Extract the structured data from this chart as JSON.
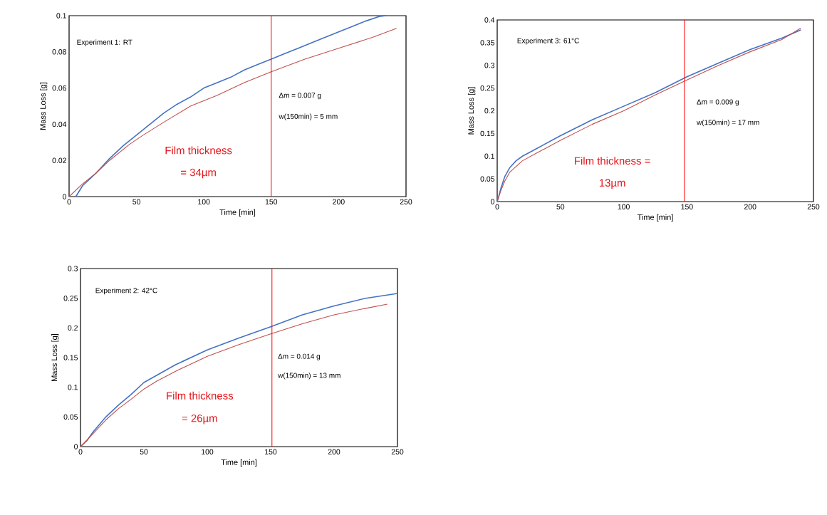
{
  "chart_data": [
    {
      "type": "line",
      "xlabel": "Time [min]",
      "ylabel": "Mass Loss [g]",
      "xlim": [
        0,
        250
      ],
      "ylim": [
        0,
        0.1
      ],
      "xticks": [
        0,
        50,
        100,
        150,
        200,
        250
      ],
      "yticks": [
        0,
        0.02,
        0.04,
        0.06,
        0.08,
        0.1
      ],
      "series": [
        {
          "color": "#4472c4",
          "x": [
            5,
            10,
            20,
            30,
            40,
            50,
            60,
            70,
            80,
            90,
            100,
            110,
            120,
            130,
            140,
            150,
            160,
            170,
            180,
            190,
            200,
            210,
            220,
            230,
            235
          ],
          "values": [
            0,
            0.006,
            0.013,
            0.021,
            0.028,
            0.034,
            0.04,
            0.046,
            0.051,
            0.055,
            0.06,
            0.063,
            0.066,
            0.07,
            0.073,
            0.076,
            0.079,
            0.082,
            0.085,
            0.088,
            0.091,
            0.094,
            0.097,
            0.0995,
            0.1
          ]
        },
        {
          "color": "#c0504d",
          "x": [
            0,
            10,
            20,
            30,
            45,
            55,
            70,
            90,
            110,
            130,
            150,
            175,
            200,
            225,
            243
          ],
          "values": [
            0,
            0.007,
            0.013,
            0.02,
            0.029,
            0.034,
            0.041,
            0.05,
            0.056,
            0.063,
            0.069,
            0.076,
            0.082,
            0.088,
            0.093
          ]
        }
      ],
      "ref_lines": [
        {
          "axis": "x",
          "value": 150,
          "color": "#ff0000"
        }
      ],
      "annotations": [
        "Experiment 1: RT",
        "Δm = 0.007 g",
        "w(150min) = 5 mm",
        "Film thickness",
        "= 34µm"
      ]
    },
    {
      "type": "line",
      "xlabel": "Time [min]",
      "ylabel": "Mass Loss [g]",
      "xlim": [
        0,
        250
      ],
      "ylim": [
        0,
        0.4
      ],
      "xticks": [
        0,
        50,
        100,
        150,
        200,
        250
      ],
      "yticks": [
        0,
        0.05,
        0.1,
        0.15,
        0.2,
        0.25,
        0.3,
        0.35,
        0.4
      ],
      "series": [
        {
          "color": "#4472c4",
          "x": [
            0,
            3,
            6,
            10,
            15,
            20,
            30,
            50,
            75,
            100,
            125,
            150,
            175,
            200,
            225,
            240
          ],
          "values": [
            0,
            0.03,
            0.055,
            0.075,
            0.09,
            0.1,
            0.115,
            0.145,
            0.18,
            0.21,
            0.24,
            0.275,
            0.305,
            0.335,
            0.36,
            0.378
          ]
        },
        {
          "color": "#c0504d",
          "x": [
            0,
            3,
            6,
            10,
            20,
            30,
            50,
            75,
            100,
            125,
            150,
            175,
            200,
            225,
            240
          ],
          "values": [
            0,
            0.025,
            0.045,
            0.065,
            0.09,
            0.105,
            0.135,
            0.17,
            0.2,
            0.235,
            0.268,
            0.3,
            0.33,
            0.357,
            0.382
          ]
        }
      ],
      "ref_lines": [
        {
          "axis": "x",
          "value": 148,
          "color": "#ff0000"
        }
      ],
      "annotations": [
        "Experiment 3: 61°C",
        "Δm = 0.009 g",
        "w(150min) = 17 mm",
        "Film thickness =",
        "13µm"
      ]
    },
    {
      "type": "line",
      "xlabel": "Time [min]",
      "ylabel": "Mass Loss [g]",
      "xlim": [
        0,
        250
      ],
      "ylim": [
        0,
        0.3
      ],
      "xticks": [
        0,
        50,
        100,
        150,
        200,
        250
      ],
      "yticks": [
        0,
        0.05,
        0.1,
        0.15,
        0.2,
        0.25,
        0.3
      ],
      "series": [
        {
          "color": "#4472c4",
          "x": [
            0,
            5,
            10,
            20,
            30,
            40,
            50,
            60,
            75,
            100,
            125,
            150,
            175,
            200,
            225,
            250
          ],
          "values": [
            0,
            0.01,
            0.025,
            0.05,
            0.07,
            0.088,
            0.108,
            0.12,
            0.138,
            0.163,
            0.183,
            0.202,
            0.222,
            0.237,
            0.25,
            0.258
          ]
        },
        {
          "color": "#c0504d",
          "x": [
            0,
            10,
            20,
            30,
            40,
            50,
            60,
            75,
            100,
            125,
            150,
            175,
            200,
            225,
            242
          ],
          "values": [
            0,
            0.022,
            0.045,
            0.064,
            0.08,
            0.097,
            0.11,
            0.127,
            0.152,
            0.172,
            0.19,
            0.207,
            0.222,
            0.233,
            0.24
          ]
        }
      ],
      "ref_lines": [
        {
          "axis": "x",
          "value": 151,
          "color": "#ff0000"
        }
      ],
      "annotations": [
        "Experiment 2: 42°C",
        "Δm = 0.014 g",
        "w(150min) = 13 mm",
        "Film thickness",
        "= 26µm"
      ]
    }
  ]
}
